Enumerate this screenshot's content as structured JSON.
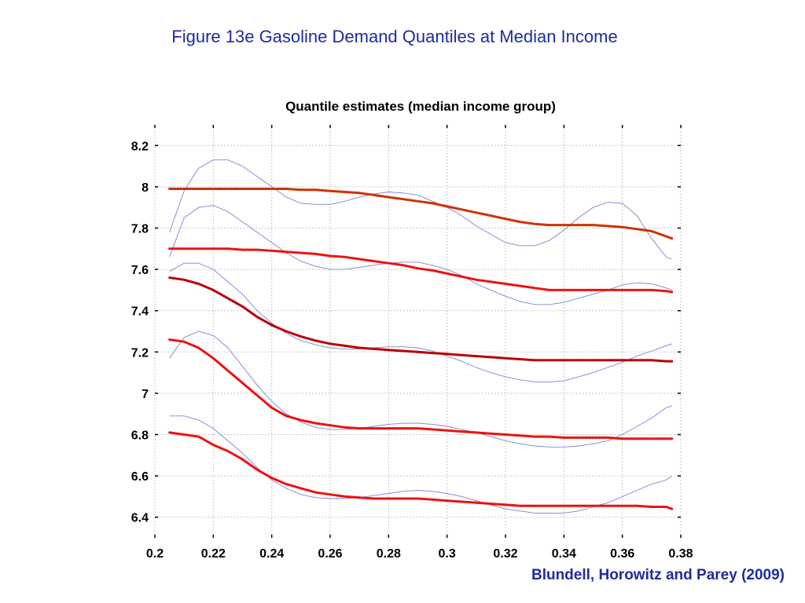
{
  "slide": {
    "title": "Figure 13e  Gasoline Demand Quantiles at Median Income",
    "citation": "Blundell, Horowitz and Parey (2009)"
  },
  "colors": {
    "title_text": "#1f2ba0",
    "quantile_lines": [
      "#cc3300",
      "#ee1111",
      "#bb0000",
      "#ee1111",
      "#ee1111"
    ],
    "confidence_bands": "#7a85d6",
    "grid": "#c8c8c8"
  },
  "chart_data": {
    "type": "line",
    "title": "Quantile estimates (median income group)",
    "xlabel": "",
    "ylabel": "",
    "xlim": [
      0.2,
      0.38
    ],
    "ylim": [
      6.3,
      8.3
    ],
    "xticks": [
      0.2,
      0.22,
      0.24,
      0.26,
      0.28,
      0.3,
      0.32,
      0.34,
      0.36,
      0.38
    ],
    "xtick_labels": [
      "0.2",
      "0.22",
      "0.24",
      "0.26",
      "0.28",
      "0.3",
      "0.32",
      "0.34",
      "0.36",
      "0.38"
    ],
    "yticks": [
      6.4,
      6.6,
      6.8,
      7,
      7.2,
      7.4,
      7.6,
      7.8,
      8,
      8.2
    ],
    "ytick_labels": [
      "6.4",
      "6.6",
      "6.8",
      "7",
      "7.2",
      "7.4",
      "7.6",
      "7.8",
      "8",
      "8.2"
    ],
    "grid": true,
    "legend": "none",
    "x": [
      0.205,
      0.21,
      0.215,
      0.22,
      0.225,
      0.23,
      0.235,
      0.24,
      0.245,
      0.25,
      0.255,
      0.26,
      0.265,
      0.27,
      0.275,
      0.28,
      0.285,
      0.29,
      0.295,
      0.3,
      0.305,
      0.31,
      0.315,
      0.32,
      0.325,
      0.33,
      0.335,
      0.34,
      0.345,
      0.35,
      0.355,
      0.36,
      0.365,
      0.37,
      0.375,
      0.377
    ],
    "series": [
      {
        "values": [
          7.99,
          7.99,
          7.99,
          7.99,
          7.99,
          7.99,
          7.99,
          7.99,
          7.99,
          7.985,
          7.985,
          7.98,
          7.975,
          7.97,
          7.96,
          7.95,
          7.94,
          7.93,
          7.92,
          7.905,
          7.89,
          7.875,
          7.86,
          7.845,
          7.83,
          7.82,
          7.815,
          7.815,
          7.815,
          7.815,
          7.81,
          7.805,
          7.795,
          7.785,
          7.76,
          7.75
        ],
        "style": "quantile"
      },
      {
        "values": [
          7.7,
          7.7,
          7.7,
          7.7,
          7.7,
          7.695,
          7.695,
          7.69,
          7.685,
          7.68,
          7.675,
          7.665,
          7.66,
          7.65,
          7.64,
          7.63,
          7.62,
          7.605,
          7.595,
          7.58,
          7.565,
          7.55,
          7.54,
          7.53,
          7.52,
          7.51,
          7.5,
          7.5,
          7.5,
          7.5,
          7.5,
          7.5,
          7.5,
          7.5,
          7.495,
          7.49
        ],
        "style": "quantile"
      },
      {
        "values": [
          7.56,
          7.55,
          7.53,
          7.5,
          7.46,
          7.42,
          7.37,
          7.33,
          7.3,
          7.275,
          7.255,
          7.24,
          7.23,
          7.22,
          7.215,
          7.21,
          7.205,
          7.2,
          7.195,
          7.19,
          7.185,
          7.18,
          7.175,
          7.17,
          7.165,
          7.16,
          7.16,
          7.16,
          7.16,
          7.16,
          7.16,
          7.16,
          7.16,
          7.16,
          7.155,
          7.155
        ],
        "style": "quantile"
      },
      {
        "values": [
          7.26,
          7.25,
          7.22,
          7.17,
          7.11,
          7.05,
          6.99,
          6.93,
          6.89,
          6.87,
          6.855,
          6.845,
          6.835,
          6.83,
          6.83,
          6.83,
          6.83,
          6.83,
          6.825,
          6.82,
          6.815,
          6.81,
          6.805,
          6.8,
          6.795,
          6.79,
          6.79,
          6.785,
          6.785,
          6.785,
          6.785,
          6.78,
          6.78,
          6.78,
          6.78,
          6.78
        ],
        "style": "quantile"
      },
      {
        "values": [
          6.81,
          6.8,
          6.79,
          6.75,
          6.72,
          6.68,
          6.63,
          6.59,
          6.56,
          6.54,
          6.52,
          6.51,
          6.5,
          6.495,
          6.49,
          6.49,
          6.49,
          6.49,
          6.485,
          6.48,
          6.475,
          6.47,
          6.465,
          6.46,
          6.455,
          6.455,
          6.455,
          6.455,
          6.455,
          6.455,
          6.455,
          6.455,
          6.455,
          6.45,
          6.45,
          6.44
        ],
        "style": "quantile"
      },
      {
        "values": [
          7.78,
          7.98,
          8.09,
          8.13,
          8.13,
          8.1,
          8.05,
          8.0,
          7.95,
          7.92,
          7.915,
          7.915,
          7.93,
          7.95,
          7.965,
          7.975,
          7.97,
          7.96,
          7.93,
          7.9,
          7.86,
          7.81,
          7.77,
          7.73,
          7.715,
          7.715,
          7.74,
          7.79,
          7.85,
          7.9,
          7.925,
          7.92,
          7.86,
          7.75,
          7.66,
          7.65
        ],
        "style": "band"
      },
      {
        "values": [
          7.66,
          7.85,
          7.9,
          7.91,
          7.88,
          7.83,
          7.78,
          7.73,
          7.68,
          7.64,
          7.615,
          7.6,
          7.6,
          7.61,
          7.62,
          7.63,
          7.635,
          7.635,
          7.62,
          7.6,
          7.57,
          7.53,
          7.5,
          7.47,
          7.445,
          7.43,
          7.43,
          7.44,
          7.46,
          7.48,
          7.5,
          7.525,
          7.535,
          7.53,
          7.51,
          7.5
        ],
        "style": "band"
      },
      {
        "values": [
          7.59,
          7.63,
          7.63,
          7.6,
          7.54,
          7.48,
          7.4,
          7.34,
          7.29,
          7.255,
          7.235,
          7.22,
          7.215,
          7.215,
          7.22,
          7.225,
          7.225,
          7.22,
          7.205,
          7.18,
          7.155,
          7.125,
          7.1,
          7.08,
          7.065,
          7.055,
          7.055,
          7.06,
          7.08,
          7.1,
          7.125,
          7.15,
          7.18,
          7.205,
          7.23,
          7.24
        ],
        "style": "band"
      },
      {
        "values": [
          7.17,
          7.27,
          7.3,
          7.28,
          7.22,
          7.13,
          7.04,
          6.96,
          6.9,
          6.86,
          6.835,
          6.825,
          6.825,
          6.83,
          6.84,
          6.85,
          6.855,
          6.855,
          6.85,
          6.84,
          6.825,
          6.81,
          6.79,
          6.77,
          6.755,
          6.745,
          6.74,
          6.74,
          6.745,
          6.755,
          6.77,
          6.8,
          6.84,
          6.88,
          6.93,
          6.94
        ],
        "style": "band"
      },
      {
        "values": [
          6.89,
          6.89,
          6.87,
          6.83,
          6.77,
          6.71,
          6.64,
          6.58,
          6.54,
          6.51,
          6.495,
          6.49,
          6.49,
          6.495,
          6.505,
          6.515,
          6.525,
          6.53,
          6.525,
          6.515,
          6.5,
          6.48,
          6.46,
          6.44,
          6.43,
          6.42,
          6.42,
          6.42,
          6.43,
          6.45,
          6.47,
          6.5,
          6.53,
          6.56,
          6.58,
          6.6
        ],
        "style": "band"
      }
    ]
  }
}
